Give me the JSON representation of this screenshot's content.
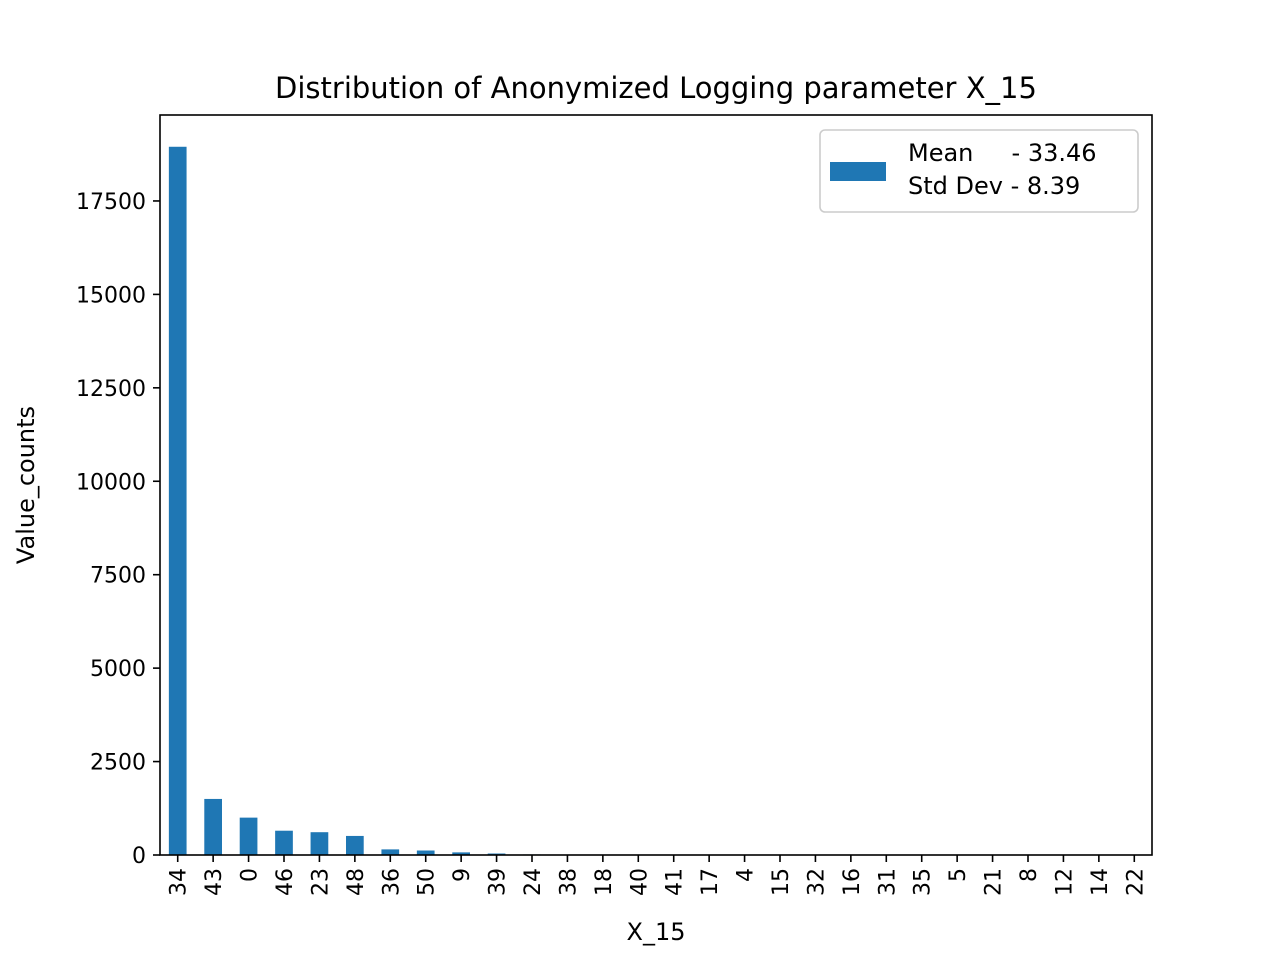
{
  "chart_data": {
    "type": "bar",
    "title": "Distribution of Anonymized Logging parameter X_15",
    "xlabel": "X_15",
    "ylabel": "Value_counts",
    "ylim": [
      0,
      19800
    ],
    "yticks": [
      0,
      2500,
      5000,
      7500,
      10000,
      12500,
      15000,
      17500
    ],
    "grid": false,
    "bar_color": "#1f77b4",
    "legend": {
      "placement": "upper right",
      "lines": [
        "Mean     - 33.46",
        "Std Dev - 8.39"
      ]
    },
    "categories": [
      "34",
      "43",
      "0",
      "46",
      "23",
      "48",
      "36",
      "50",
      "9",
      "39",
      "24",
      "38",
      "18",
      "40",
      "41",
      "17",
      "4",
      "15",
      "32",
      "16",
      "31",
      "35",
      "5",
      "21",
      "8",
      "12",
      "14",
      "22"
    ],
    "values": [
      18950,
      1500,
      1000,
      650,
      610,
      510,
      150,
      120,
      70,
      40,
      15,
      10,
      8,
      6,
      5,
      4,
      3,
      3,
      2,
      2,
      2,
      1,
      1,
      1,
      1,
      1,
      1,
      1
    ]
  }
}
